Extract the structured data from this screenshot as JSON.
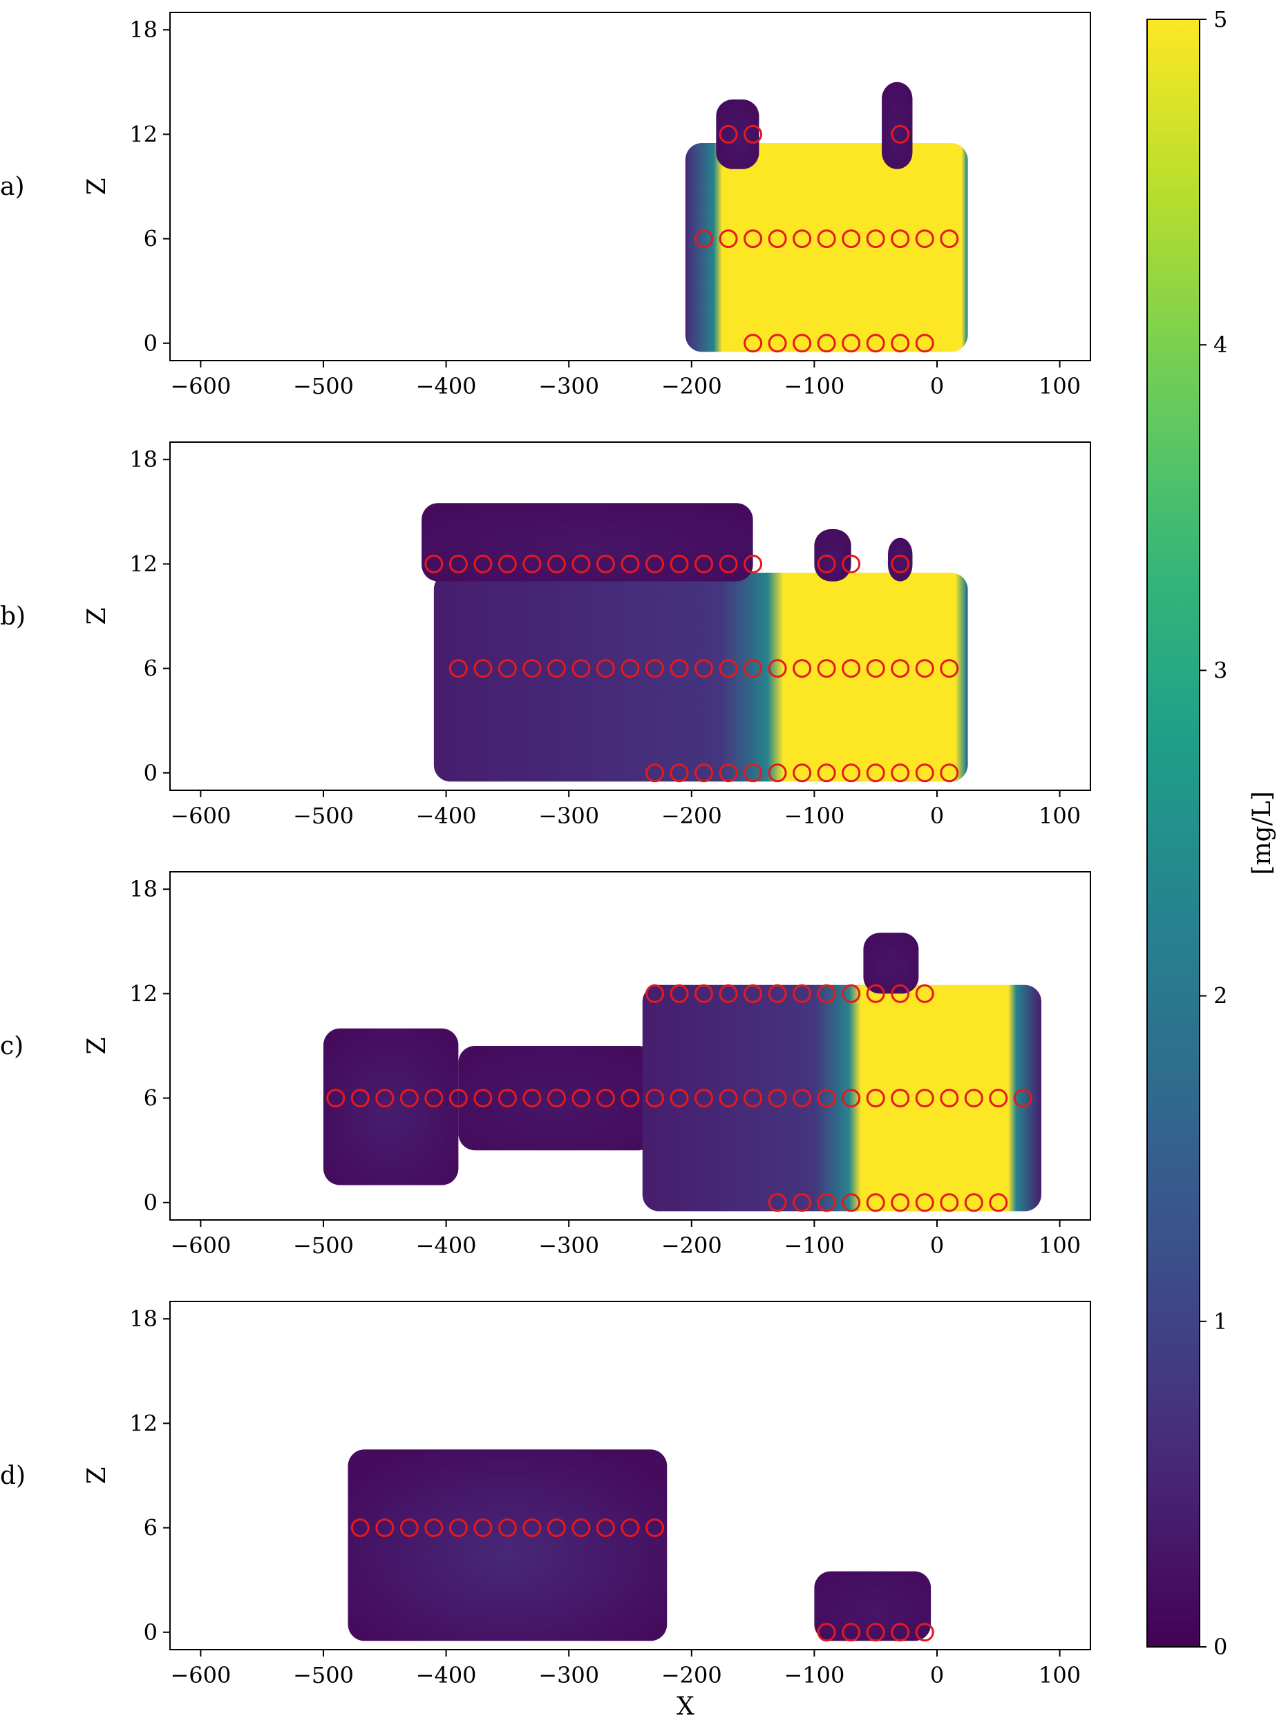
{
  "chart_data": {
    "type": "heatmap",
    "xlabel": "X",
    "ylabel": "Z",
    "xlim": [
      -625,
      125
    ],
    "ylim": [
      -1,
      19
    ],
    "xticks": [
      -600,
      -500,
      -400,
      -300,
      -200,
      -100,
      0,
      100
    ],
    "yticks": [
      0,
      6,
      12,
      18
    ],
    "colorbar": {
      "label": "[mg/L]",
      "range": [
        0,
        5
      ],
      "ticks": [
        0,
        1,
        2,
        3,
        4,
        5
      ],
      "colormap": "viridis"
    },
    "marker_color": "#e41a1c",
    "panels": [
      {
        "label": "a)",
        "regions": [
          {
            "x": [
              -205,
              25
            ],
            "z": [
              -0.5,
              11.5
            ],
            "peak": 5.0,
            "hot_x": [
              -175,
              20
            ],
            "hot_z": [
              0.5,
              10.5
            ]
          },
          {
            "x": [
              -180,
              -145
            ],
            "z": [
              10,
              14
            ],
            "peak": 0.3
          },
          {
            "x": [
              -45,
              -20
            ],
            "z": [
              10,
              15
            ],
            "peak": 0.3
          }
        ],
        "markers": [
          {
            "z": 12,
            "x": [
              -170,
              -150,
              -30
            ]
          },
          {
            "z": 6,
            "x": [
              -190,
              -170,
              -150,
              -130,
              -110,
              -90,
              -70,
              -50,
              -30,
              -10,
              10
            ]
          },
          {
            "z": 0,
            "x": [
              -150,
              -130,
              -110,
              -90,
              -70,
              -50,
              -30,
              -10
            ]
          }
        ]
      },
      {
        "label": "b)",
        "regions": [
          {
            "x": [
              -410,
              25
            ],
            "z": [
              -0.5,
              11.5
            ],
            "peak": 5.0,
            "hot_x": [
              -125,
              15
            ],
            "hot_z": [
              0.5,
              10.0
            ]
          },
          {
            "x": [
              -420,
              -150
            ],
            "z": [
              11,
              15.5
            ],
            "peak": 0.3
          },
          {
            "x": [
              -100,
              -70
            ],
            "z": [
              11,
              14
            ],
            "peak": 0.3
          },
          {
            "x": [
              -40,
              -20
            ],
            "z": [
              11,
              13.5
            ],
            "peak": 0.3
          }
        ],
        "markers": [
          {
            "z": 12,
            "x": [
              -410,
              -390,
              -370,
              -350,
              -330,
              -310,
              -290,
              -270,
              -250,
              -230,
              -210,
              -190,
              -170,
              -150,
              -90,
              -70,
              -30
            ]
          },
          {
            "z": 6,
            "x": [
              -390,
              -370,
              -350,
              -330,
              -310,
              -290,
              -270,
              -250,
              -230,
              -210,
              -190,
              -170,
              -150,
              -130,
              -110,
              -90,
              -70,
              -50,
              -30,
              -10,
              10
            ]
          },
          {
            "z": 0,
            "x": [
              -230,
              -210,
              -190,
              -170,
              -150,
              -130,
              -110,
              -90,
              -70,
              -50,
              -30,
              -10,
              10
            ]
          }
        ]
      },
      {
        "label": "c)",
        "regions": [
          {
            "x": [
              -500,
              -390
            ],
            "z": [
              1,
              10
            ],
            "peak": 0.4
          },
          {
            "x": [
              -390,
              -230
            ],
            "z": [
              3,
              9
            ],
            "peak": 0.3
          },
          {
            "x": [
              -240,
              85
            ],
            "z": [
              -0.5,
              12.5
            ],
            "peak": 5.0,
            "hot_x": [
              -62,
              58
            ],
            "hot_z": [
              0.5,
              11.0
            ]
          },
          {
            "x": [
              -60,
              -15
            ],
            "z": [
              12,
              15.5
            ],
            "peak": 0.3
          }
        ],
        "markers": [
          {
            "z": 12,
            "x": [
              -230,
              -210,
              -190,
              -170,
              -150,
              -130,
              -110,
              -90,
              -70,
              -50,
              -30,
              -10
            ]
          },
          {
            "z": 6,
            "x": [
              -490,
              -470,
              -450,
              -430,
              -410,
              -390,
              -370,
              -350,
              -330,
              -310,
              -290,
              -270,
              -250,
              -230,
              -210,
              -190,
              -170,
              -150,
              -130,
              -110,
              -90,
              -70,
              -50,
              -30,
              -10,
              10,
              30,
              50,
              70
            ]
          },
          {
            "z": 0,
            "x": [
              -130,
              -110,
              -90,
              -70,
              -50,
              -30,
              -10,
              10,
              30,
              50
            ]
          }
        ]
      },
      {
        "label": "d)",
        "regions": [
          {
            "x": [
              -480,
              -220
            ],
            "z": [
              -0.5,
              10.5
            ],
            "peak": 0.55
          },
          {
            "x": [
              -100,
              -5
            ],
            "z": [
              -0.5,
              3.5
            ],
            "peak": 0.3
          }
        ],
        "markers": [
          {
            "z": 6,
            "x": [
              -470,
              -450,
              -430,
              -410,
              -390,
              -370,
              -350,
              -330,
              -310,
              -290,
              -270,
              -250,
              -230
            ]
          },
          {
            "z": 0,
            "x": [
              -90,
              -70,
              -50,
              -30,
              -10
            ]
          }
        ]
      }
    ]
  }
}
